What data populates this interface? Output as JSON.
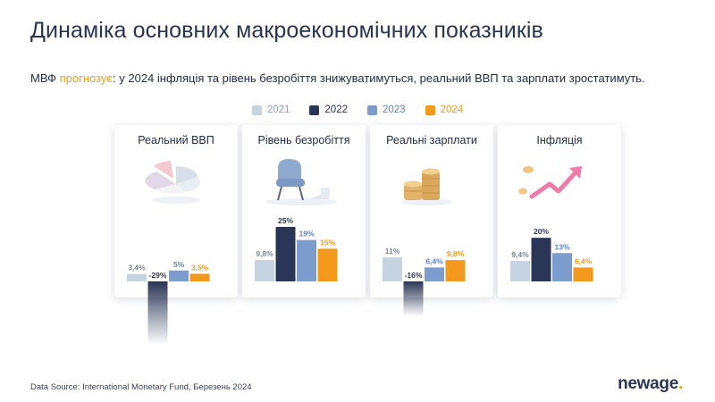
{
  "title": "Динаміка основних макроекономічних показників",
  "subtitle": {
    "prefix": "МВФ ",
    "accent": "прогнозує",
    "rest": ": у 2024 інфляція та рівень безробіття знижуватимуться, реальний ВВП та зарплати зростатимуть."
  },
  "colors": {
    "2021": "#c6d3e0",
    "2022": "#2b3555",
    "2023": "#7b9ccc",
    "2024": "#f39a1e"
  },
  "legend": [
    "2021",
    "2022",
    "2023",
    "2024"
  ],
  "chart_data": [
    {
      "type": "bar",
      "title": "Реальний ВВП",
      "illustration": "pie-chart-3d",
      "categories": [
        "2021",
        "2022",
        "2023",
        "2024"
      ],
      "values": [
        3.4,
        -29,
        5,
        3.5
      ],
      "labels": [
        "3,4%",
        "-29%",
        "5%",
        "3,5%"
      ]
    },
    {
      "type": "bar",
      "title": "Рівень безробіття",
      "illustration": "armchair-laptop",
      "categories": [
        "2021",
        "2022",
        "2023",
        "2024"
      ],
      "values": [
        9.8,
        25,
        19,
        15
      ],
      "labels": [
        "9,8%",
        "25%",
        "19%",
        "15%"
      ]
    },
    {
      "type": "bar",
      "title": "Реальні зарплати",
      "illustration": "coin-stacks",
      "categories": [
        "2021",
        "2022",
        "2023",
        "2024"
      ],
      "values": [
        11,
        -16,
        6.4,
        9.8
      ],
      "labels": [
        "11%",
        "-16%",
        "6,4%",
        "9,8%"
      ]
    },
    {
      "type": "bar",
      "title": "Інфляція",
      "illustration": "rising-arrow-coins",
      "categories": [
        "2021",
        "2022",
        "2023",
        "2024"
      ],
      "values": [
        9.4,
        20,
        13,
        6.4
      ],
      "labels": [
        "9,4%",
        "20%",
        "13%",
        "6,4%"
      ]
    }
  ],
  "source": "Data Source: International Monetary Fund, Березень 2024",
  "logo": {
    "text": "newage",
    "dot": "."
  }
}
